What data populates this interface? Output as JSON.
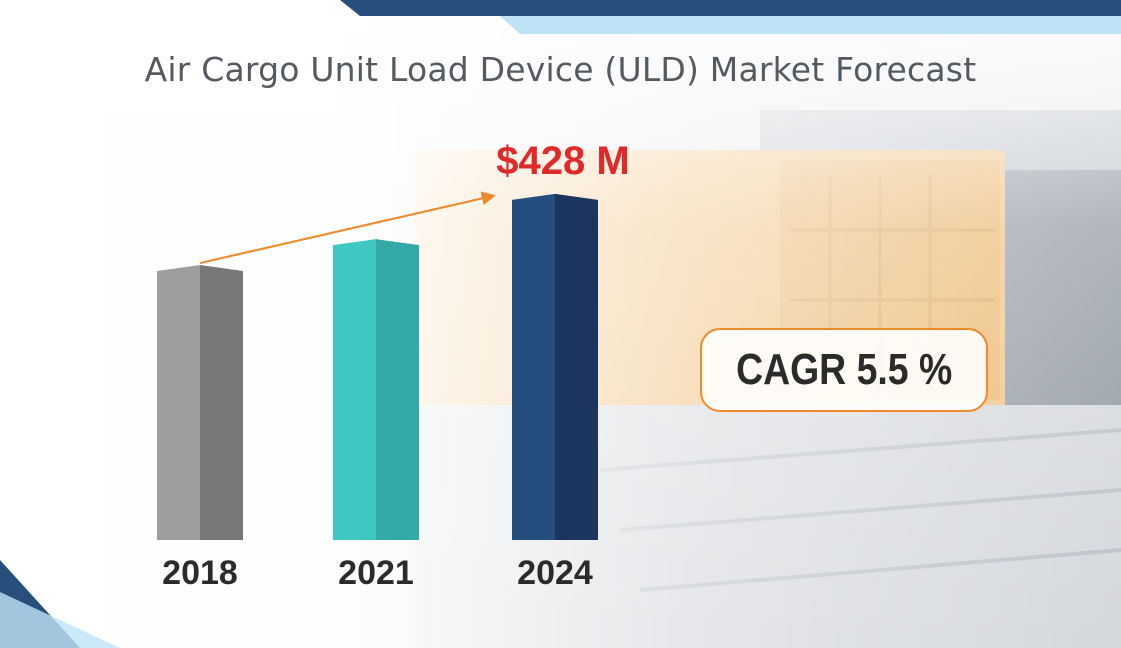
{
  "chart_data": {
    "type": "bar",
    "title": "Air Cargo Unit Load Device (ULD) Market Forecast",
    "categories": [
      "2018",
      "2021",
      "2024"
    ],
    "values": [
      340,
      372,
      428
    ],
    "ylim": [
      0,
      460
    ],
    "value_labels": [
      "",
      "",
      "$428 M"
    ],
    "annotation": "CAGR 5.5 %",
    "grid": false,
    "legend": "none",
    "colors": [
      "#9e9e9e",
      "#3ec7c3",
      "#234e7d"
    ],
    "shadow_colors": [
      "#787878",
      "#32a9a7",
      "#1c355f"
    ],
    "label_color": "#e02a2a",
    "arrow_color": "#f0882a"
  }
}
